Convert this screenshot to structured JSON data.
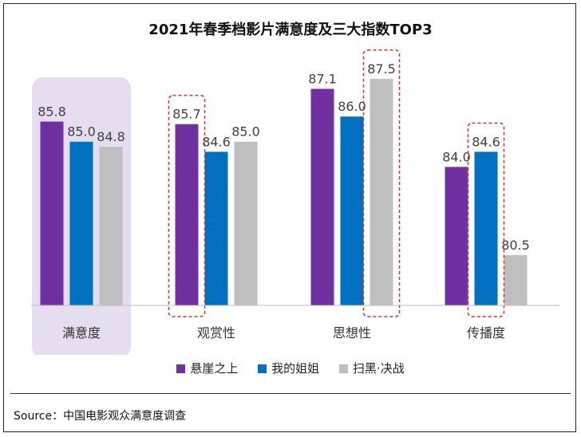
{
  "chart_data": {
    "type": "bar",
    "title": "2021年春季档影片满意度及三大指数TOP3",
    "categories": [
      "满意度",
      "观赏性",
      "思想性",
      "传播度"
    ],
    "series": [
      {
        "name": "悬崖之上",
        "color": "#7030A0",
        "values": [
          85.8,
          85.7,
          87.1,
          84.0
        ]
      },
      {
        "name": "我的姐姐",
        "color": "#0070C0",
        "values": [
          85.0,
          84.6,
          86.0,
          84.6
        ]
      },
      {
        "name": "扫黑·决战",
        "color": "#BFBFBF",
        "values": [
          84.8,
          85.0,
          87.5,
          80.5
        ]
      }
    ],
    "value_labels": [
      [
        "85.8",
        "85.0",
        "84.8"
      ],
      [
        "85.7",
        "84.6",
        "85.0"
      ],
      [
        "87.1",
        "86.0",
        "87.5"
      ],
      [
        "84.0",
        "84.6",
        "80.5"
      ]
    ],
    "ylim": [
      78.5,
      88.0
    ],
    "grid": false,
    "legend_position": "bottom",
    "highlight_category": "满意度",
    "highlight_color": "#E6DDF0",
    "dashed_highlights": [
      {
        "category": "观赏性",
        "series": "悬崖之上"
      },
      {
        "category": "思想性",
        "series": "扫黑·决战"
      },
      {
        "category": "传播度",
        "series": "我的姐姐"
      }
    ],
    "dashed_color": "#E03030"
  },
  "source_text": "Source：中国电影观众满意度调查"
}
